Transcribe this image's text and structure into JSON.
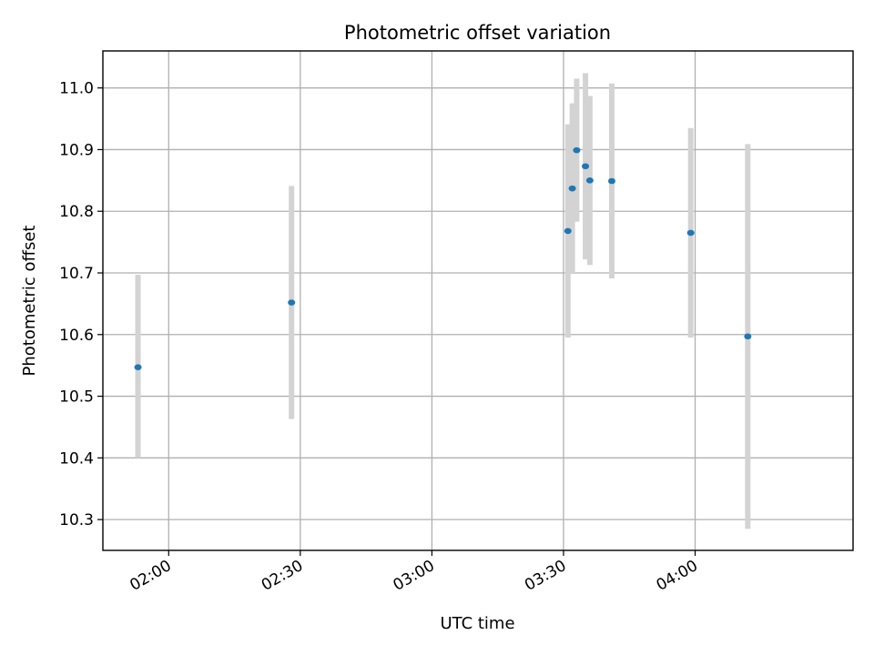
{
  "chart_data": {
    "type": "scatter",
    "title": "Photometric offset variation",
    "xlabel": "UTC time",
    "ylabel": "Photometric offset",
    "x_is_time": true,
    "xlim": [
      "01:45",
      "04:36"
    ],
    "ylim": [
      10.25,
      11.06
    ],
    "x_ticks": [
      "02:00",
      "02:30",
      "03:00",
      "03:30",
      "04:00"
    ],
    "y_ticks": [
      "10.3",
      "10.4",
      "10.5",
      "10.6",
      "10.7",
      "10.8",
      "10.9",
      "11.0"
    ],
    "grid": true,
    "colors": {
      "point": "#1f77b4",
      "errorbar": "#d3d3d3",
      "grid": "#b0b0b0"
    },
    "points": [
      {
        "x": "01:53",
        "y": 10.547,
        "y_low": 10.4,
        "y_high": 10.697
      },
      {
        "x": "02:28",
        "y": 10.652,
        "y_low": 10.463,
        "y_high": 10.841
      },
      {
        "x": "03:31",
        "y": 10.768,
        "y_low": 10.595,
        "y_high": 10.941
      },
      {
        "x": "03:32",
        "y": 10.837,
        "y_low": 10.7,
        "y_high": 10.975
      },
      {
        "x": "03:33",
        "y": 10.899,
        "y_low": 10.783,
        "y_high": 11.015
      },
      {
        "x": "03:35",
        "y": 10.873,
        "y_low": 10.722,
        "y_high": 11.024
      },
      {
        "x": "03:36",
        "y": 10.85,
        "y_low": 10.713,
        "y_high": 10.987
      },
      {
        "x": "03:41",
        "y": 10.849,
        "y_low": 10.691,
        "y_high": 11.007
      },
      {
        "x": "03:59",
        "y": 10.765,
        "y_low": 10.595,
        "y_high": 10.935
      },
      {
        "x": "04:12",
        "y": 10.597,
        "y_low": 10.285,
        "y_high": 10.909
      }
    ]
  }
}
